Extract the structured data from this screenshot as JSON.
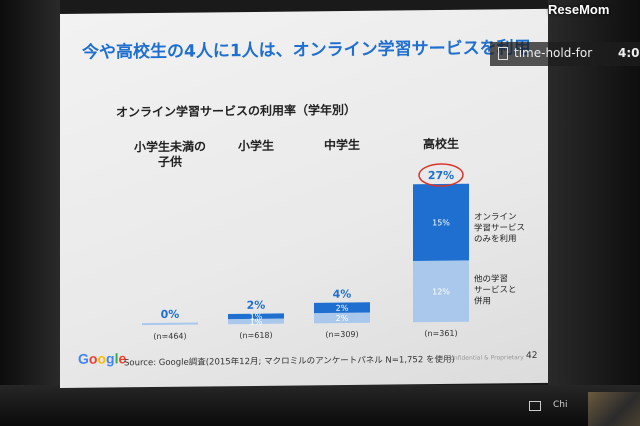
{
  "watermark": "ReseMom",
  "overlay": {
    "label": "time-hold-for",
    "clock": "4:0"
  },
  "bottom": {
    "chip": "Chi"
  },
  "slide": {
    "title": "今や高校生の4人に1人は、オンライン学習サービスを利用",
    "source": "Source: Google調査(2015年12月; マクロミルのアンケートパネル N=1,752 を使用)",
    "confidential": "Confidential & Proprietary",
    "page": "42",
    "logo_letters": [
      "G",
      "o",
      "o",
      "g",
      "l",
      "e"
    ],
    "logo_colors": [
      "#4285F4",
      "#EA4335",
      "#FBBC05",
      "#4285F4",
      "#34A853",
      "#EA4335"
    ]
  },
  "chart_data": {
    "type": "bar",
    "stacked": true,
    "title": "オンライン学習サービスの利用率（学年別）",
    "categories": [
      {
        "label_lines": [
          "小学生未満の",
          "子供"
        ],
        "n": "(n=464)",
        "total": "0%"
      },
      {
        "label_lines": [
          "小学生"
        ],
        "n": "(n=618)",
        "total": "2%"
      },
      {
        "label_lines": [
          "中学生"
        ],
        "n": "(n=309)",
        "total": "4%"
      },
      {
        "label_lines": [
          "高校生"
        ],
        "n": "(n=361)",
        "total": "27%"
      }
    ],
    "series": [
      {
        "name": "他の学習サービスと併用",
        "legend_lines": [
          "他の学習",
          "サービスと",
          "併用"
        ],
        "values": [
          0,
          1,
          2,
          12
        ],
        "labels": [
          "",
          "1%",
          "2%",
          "12%"
        ],
        "color": "#a9c8ec"
      },
      {
        "name": "オンライン学習サービスのみを利用",
        "legend_lines": [
          "オンライン",
          "学習サービス",
          "のみを利用"
        ],
        "values": [
          0,
          1,
          2,
          15
        ],
        "labels": [
          "",
          "1%",
          "2%",
          "15%"
        ],
        "color": "#1f6fd0"
      }
    ],
    "highlight": {
      "category_index": 3,
      "color": "#d9342b"
    },
    "ylim": [
      0,
      27
    ]
  }
}
